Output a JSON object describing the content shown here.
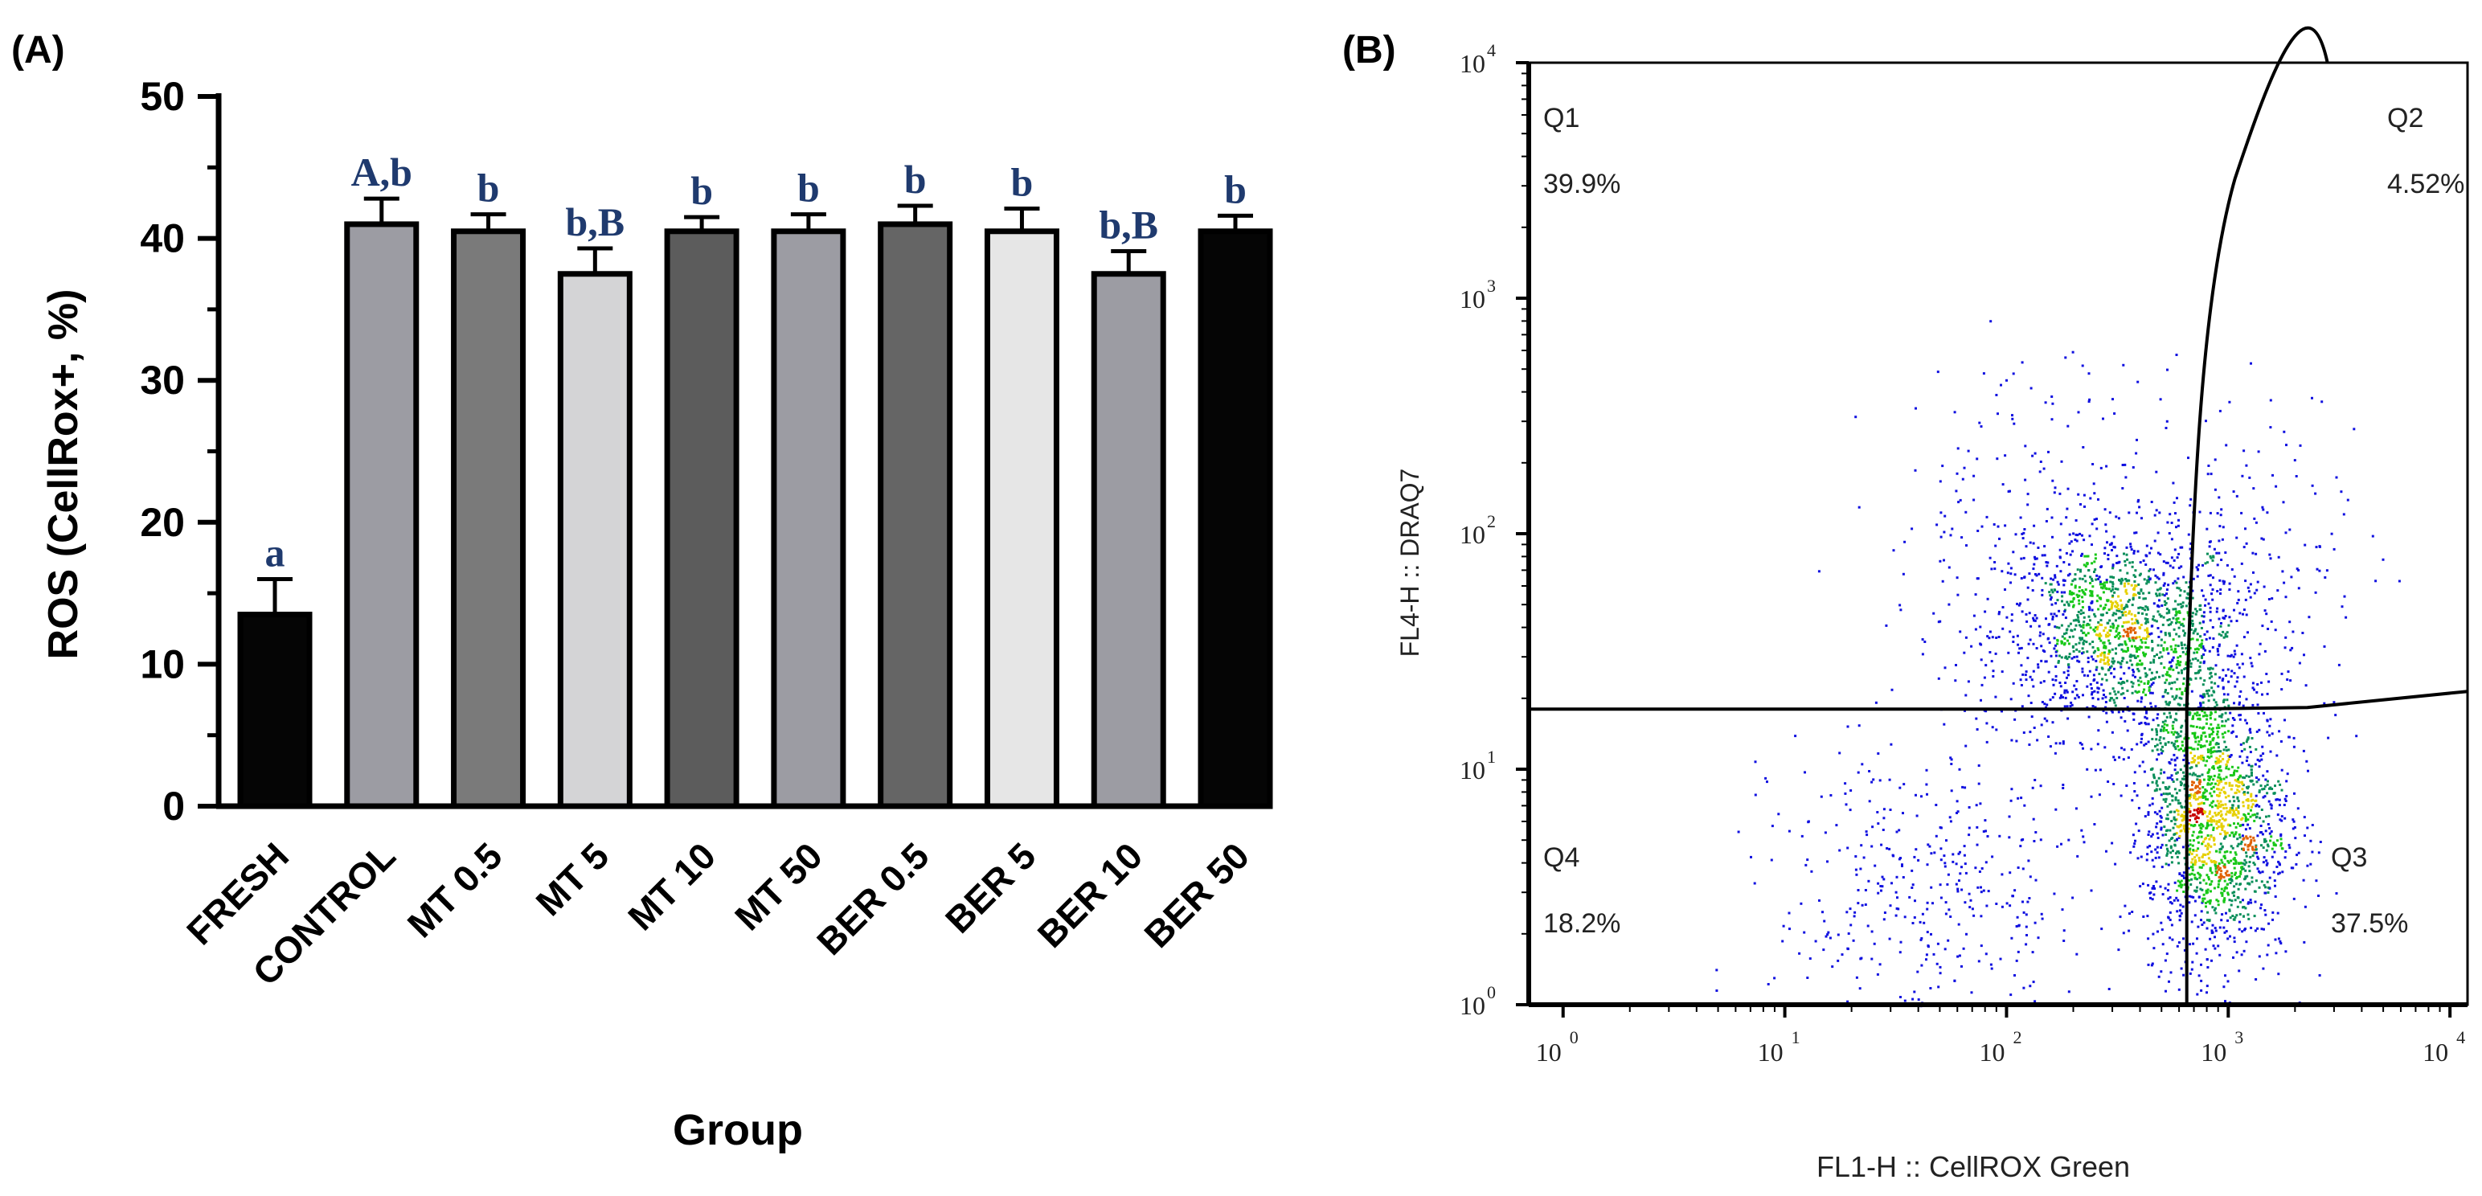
{
  "panel_a": {
    "panel_label": "(A)",
    "colors": {
      "axis": "#000000",
      "letters": "#1f3a6e"
    },
    "chart_data": {
      "type": "bar",
      "title": "",
      "xlabel": "Group",
      "ylabel": "ROS (CellRox+, %)",
      "ylim": [
        0,
        50
      ],
      "yticks": [
        0,
        10,
        20,
        30,
        40,
        50
      ],
      "categories": [
        "FRESH",
        "CONTROL",
        "MT 0.5",
        "MT 5",
        "MT 10",
        "MT 50",
        "BER 0.5",
        "BER 5",
        "BER 10",
        "BER 50"
      ],
      "values": [
        13.5,
        41.0,
        40.5,
        37.5,
        40.5,
        40.5,
        41.0,
        40.5,
        37.5,
        40.5
      ],
      "errors": [
        2.5,
        1.8,
        1.2,
        1.8,
        1.0,
        1.2,
        1.3,
        1.6,
        1.6,
        1.1
      ],
      "labels": [
        "a",
        "A,b",
        "b",
        "b,B",
        "b",
        "b",
        "b",
        "b",
        "b,B",
        "b"
      ],
      "fills": [
        "#050505",
        "#9c9ca3",
        "#7a7a7a",
        "#d4d4d6",
        "#5c5c5c",
        "#9c9ca3",
        "#656565",
        "#e6e6e6",
        "#9c9ca3",
        "#050505"
      ]
    }
  },
  "panel_b": {
    "panel_label": "(B)",
    "colors": {
      "axis": "#000000",
      "gate": "#000000"
    },
    "chart_data": {
      "type": "scatter",
      "title": "",
      "xlabel": "FL1-H :: CellROX Green",
      "ylabel": "FL4-H :: DRAQ7",
      "xscale": "log",
      "yscale": "log",
      "xlim": [
        0.7,
        12000
      ],
      "ylim": [
        1,
        10000
      ],
      "x_decades": [
        0,
        1,
        2,
        3,
        4
      ],
      "y_decades": [
        0,
        1,
        2,
        3,
        4
      ],
      "quadrant_gate": {
        "x": 650,
        "y": 18
      },
      "quadrants": [
        {
          "name": "Q1",
          "percent": "39.9%",
          "position": "top-left"
        },
        {
          "name": "Q2",
          "percent": "4.52%",
          "position": "top-right"
        },
        {
          "name": "Q3",
          "percent": "37.5%",
          "position": "bottom-right"
        },
        {
          "name": "Q4",
          "percent": "18.2%",
          "position": "bottom-left"
        }
      ],
      "populations": [
        {
          "center": [
            320,
            38
          ],
          "spread": [
            0.28,
            0.22
          ],
          "count": 1400
        },
        {
          "center": [
            900,
            6
          ],
          "spread": [
            0.16,
            0.3
          ],
          "count": 1300
        },
        {
          "center": [
            650,
            10
          ],
          "spread": [
            0.12,
            0.35
          ],
          "count": 500
        },
        {
          "center": [
            45,
            3
          ],
          "spread": [
            0.35,
            0.35
          ],
          "count": 420
        },
        {
          "center": [
            200,
            120
          ],
          "spread": [
            0.45,
            0.35
          ],
          "count": 250
        },
        {
          "center": [
            1500,
            80
          ],
          "spread": [
            0.25,
            0.35
          ],
          "count": 120
        }
      ],
      "point_colors": [
        "#1010e0",
        "#0a8f5a",
        "#18c818",
        "#e6d000",
        "#e06000",
        "#c80000"
      ]
    }
  }
}
